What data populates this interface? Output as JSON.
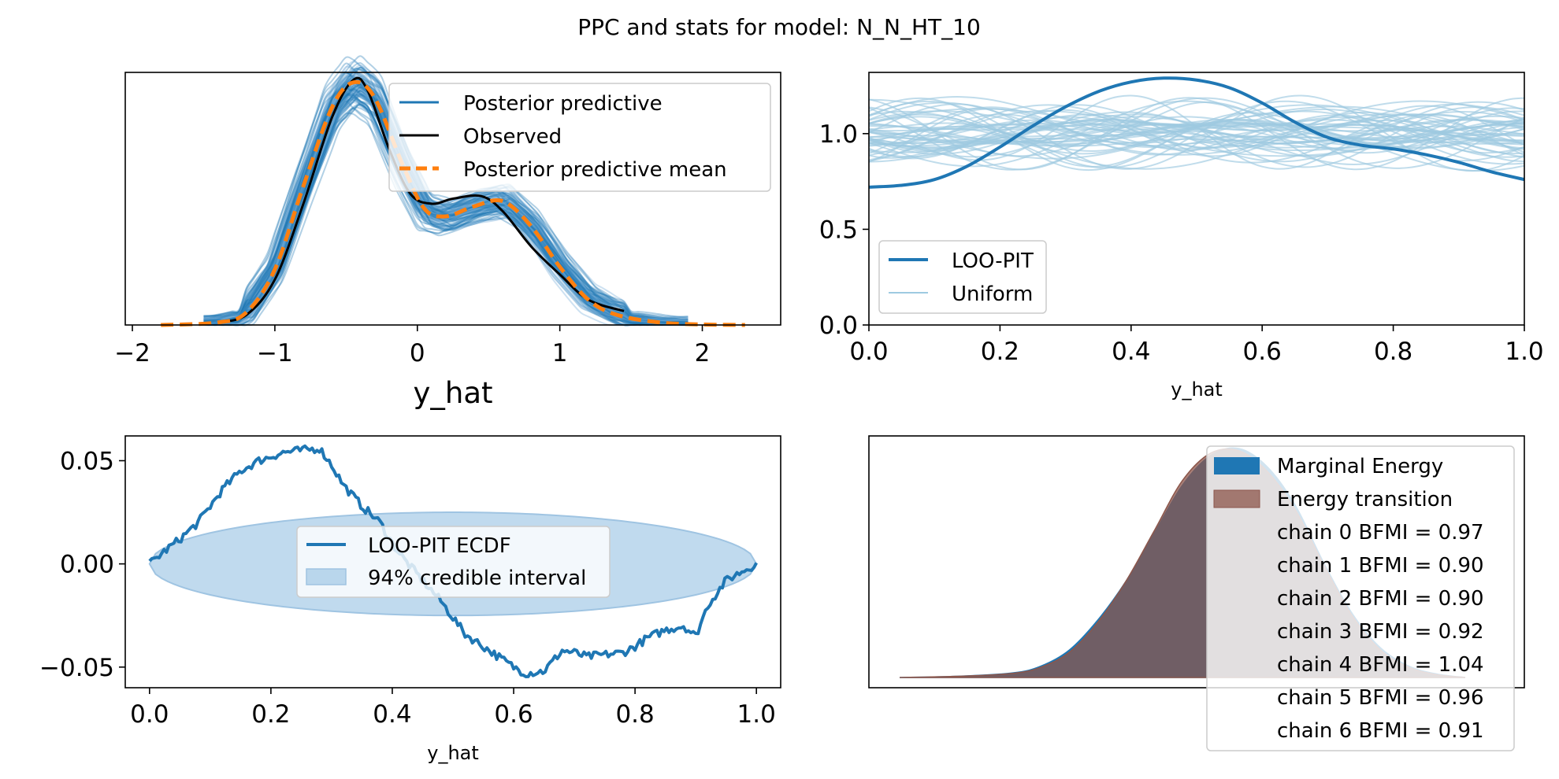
{
  "title": "PPC and stats for model: N_N_HT_10",
  "colors": {
    "ppc_blue": "#1f77b4",
    "ppc_light": "#6fa8d6",
    "observed": "#000000",
    "mean_orange": "#ff7f0e",
    "uniform": "#9ecae1",
    "band_fill": "#b9d6ec",
    "energy_marginal": "#1f77b4",
    "energy_transition": "#8c564b"
  },
  "chart_data": [
    {
      "type": "line",
      "panel": "ppc",
      "xlabel": "y_hat",
      "xlim": [
        -2.05,
        2.55
      ],
      "ylim": [
        0,
        1.0
      ],
      "xticks": [
        -2,
        -1,
        0,
        1,
        2
      ],
      "xtick_labels": [
        "−2",
        "−1",
        "0",
        "1",
        "2"
      ],
      "yticks": [],
      "legend": {
        "position": "upper right",
        "entries": [
          "Posterior predictive",
          "Observed",
          "Posterior predictive mean"
        ]
      },
      "observed": {
        "x": [
          -1.4,
          -1.2,
          -1.0,
          -0.8,
          -0.6,
          -0.45,
          -0.35,
          -0.2,
          -0.05,
          0.1,
          0.25,
          0.45,
          0.6,
          0.8,
          1.0,
          1.2,
          1.45
        ],
        "y": [
          0.01,
          0.04,
          0.18,
          0.48,
          0.82,
          0.97,
          0.93,
          0.7,
          0.52,
          0.48,
          0.5,
          0.51,
          0.45,
          0.31,
          0.2,
          0.1,
          0.055
        ]
      },
      "posterior_predictive_mean": {
        "x": [
          -1.8,
          -1.4,
          -1.2,
          -1.0,
          -0.8,
          -0.6,
          -0.45,
          -0.3,
          -0.1,
          0.05,
          0.2,
          0.4,
          0.6,
          0.8,
          1.0,
          1.2,
          1.4,
          1.7,
          2.0,
          2.3
        ],
        "y": [
          0.0,
          0.01,
          0.05,
          0.22,
          0.55,
          0.86,
          0.96,
          0.9,
          0.63,
          0.46,
          0.43,
          0.47,
          0.49,
          0.39,
          0.23,
          0.1,
          0.04,
          0.01,
          0.002,
          0.0
        ]
      },
      "posterior_predictive_draws": 100
    },
    {
      "type": "line",
      "panel": "loo_pit",
      "xlabel": "y_hat",
      "xlim": [
        0.0,
        1.0
      ],
      "ylim": [
        0.0,
        1.32
      ],
      "xticks": [
        0.0,
        0.2,
        0.4,
        0.6,
        0.8,
        1.0
      ],
      "xtick_labels": [
        "0.0",
        "0.2",
        "0.4",
        "0.6",
        "0.8",
        "1.0"
      ],
      "yticks": [
        0.0,
        0.5,
        1.0
      ],
      "ytick_labels": [
        "0.0",
        "0.5",
        "1.0"
      ],
      "legend": {
        "position": "lower left",
        "entries": [
          "LOO-PIT",
          "Uniform"
        ]
      },
      "loo_pit": {
        "x": [
          0.0,
          0.05,
          0.1,
          0.15,
          0.2,
          0.25,
          0.3,
          0.35,
          0.4,
          0.45,
          0.5,
          0.55,
          0.6,
          0.65,
          0.7,
          0.75,
          0.8,
          0.85,
          0.9,
          0.95,
          1.0
        ],
        "y": [
          0.72,
          0.73,
          0.76,
          0.83,
          0.93,
          1.04,
          1.14,
          1.22,
          1.27,
          1.29,
          1.28,
          1.24,
          1.16,
          1.06,
          0.98,
          0.94,
          0.92,
          0.89,
          0.85,
          0.8,
          0.76
        ]
      },
      "uniform_draws": 50
    },
    {
      "type": "line",
      "panel": "loo_pit_ecdf",
      "xlabel": "y_hat",
      "xlim": [
        -0.04,
        1.04
      ],
      "ylim": [
        -0.06,
        0.062
      ],
      "xticks": [
        0.0,
        0.2,
        0.4,
        0.6,
        0.8,
        1.0
      ],
      "xtick_labels": [
        "0.0",
        "0.2",
        "0.4",
        "0.6",
        "0.8",
        "1.0"
      ],
      "yticks": [
        -0.05,
        0.0,
        0.05
      ],
      "ytick_labels": [
        "−0.05",
        "0.00",
        "0.05"
      ],
      "legend": {
        "position": "center",
        "entries": [
          "LOO-PIT ECDF",
          "94% credible interval"
        ]
      },
      "ecdf": {
        "x": [
          0.0,
          0.02,
          0.05,
          0.08,
          0.1,
          0.12,
          0.15,
          0.18,
          0.2,
          0.22,
          0.25,
          0.28,
          0.3,
          0.32,
          0.35,
          0.38,
          0.4,
          0.42,
          0.45,
          0.48,
          0.5,
          0.52,
          0.55,
          0.58,
          0.6,
          0.62,
          0.65,
          0.68,
          0.7,
          0.72,
          0.75,
          0.78,
          0.8,
          0.82,
          0.85,
          0.88,
          0.9,
          0.92,
          0.95,
          0.98,
          1.0
        ],
        "y": [
          0.0,
          0.005,
          0.012,
          0.02,
          0.028,
          0.036,
          0.045,
          0.05,
          0.052,
          0.054,
          0.055,
          0.056,
          0.048,
          0.038,
          0.028,
          0.02,
          0.01,
          0.002,
          -0.008,
          -0.018,
          -0.026,
          -0.034,
          -0.04,
          -0.046,
          -0.05,
          -0.053,
          -0.052,
          -0.042,
          -0.043,
          -0.045,
          -0.044,
          -0.043,
          -0.04,
          -0.036,
          -0.032,
          -0.03,
          -0.035,
          -0.02,
          -0.008,
          -0.003,
          0.0
        ]
      },
      "band_halfwidth_max": 0.025
    },
    {
      "type": "area",
      "panel": "energy",
      "legend": {
        "position": "upper right",
        "entries": [
          "Marginal Energy",
          "Energy transition",
          "chain  0 BFMI = 0.97",
          "chain  1 BFMI = 0.90",
          "chain  2 BFMI = 0.90",
          "chain  3 BFMI = 0.92",
          "chain  4 BFMI = 1.04",
          "chain  5 BFMI = 0.96",
          "chain  6 BFMI = 0.91"
        ]
      },
      "bfmi": [
        0.97,
        0.9,
        0.9,
        0.92,
        1.04,
        0.96,
        0.91
      ],
      "marginal_energy": {
        "x": [
          0.0,
          0.1,
          0.2,
          0.25,
          0.3,
          0.35,
          0.4,
          0.45,
          0.5,
          0.55,
          0.6,
          0.65,
          0.7,
          0.75,
          0.8,
          0.85,
          0.9,
          0.95,
          1.0
        ],
        "y": [
          0.0,
          0.005,
          0.02,
          0.05,
          0.12,
          0.25,
          0.42,
          0.63,
          0.84,
          0.97,
          1.0,
          0.92,
          0.75,
          0.5,
          0.28,
          0.13,
          0.05,
          0.015,
          0.0
        ]
      },
      "energy_transition": {
        "x": [
          0.0,
          0.1,
          0.2,
          0.25,
          0.3,
          0.35,
          0.4,
          0.45,
          0.5,
          0.55,
          0.6,
          0.65,
          0.7,
          0.75,
          0.8,
          0.85,
          0.9,
          0.95,
          1.0
        ],
        "y": [
          0.0,
          0.005,
          0.018,
          0.045,
          0.11,
          0.24,
          0.42,
          0.64,
          0.86,
          0.98,
          0.99,
          0.9,
          0.73,
          0.49,
          0.27,
          0.12,
          0.045,
          0.012,
          0.0
        ]
      }
    }
  ]
}
